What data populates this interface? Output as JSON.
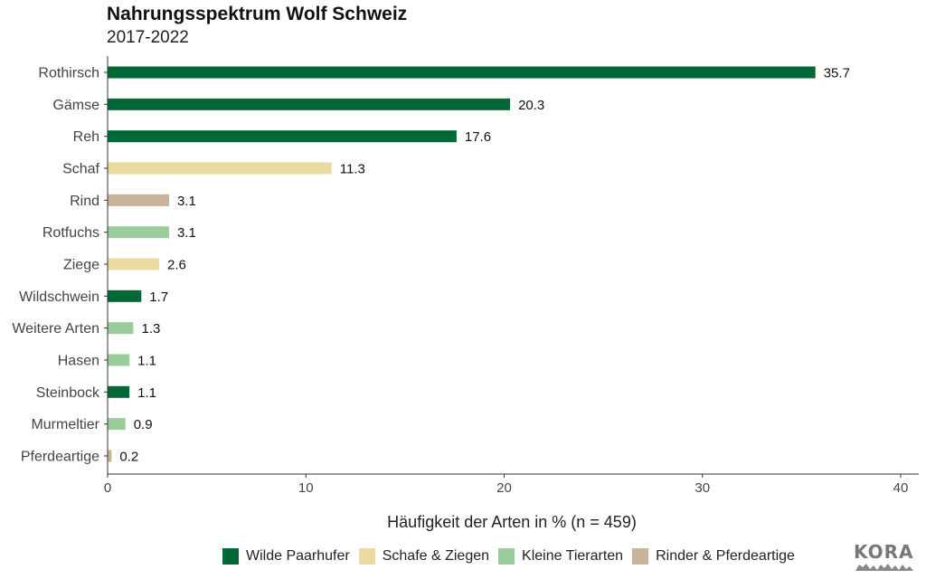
{
  "chart_data": {
    "type": "bar",
    "orientation": "horizontal",
    "title": "Nahrungsspektrum Wolf Schweiz",
    "subtitle": "2017-2022",
    "xlabel": "Häufigkeit der Arten in % (n = 459)",
    "ylabel": "",
    "xlim": [
      0,
      40
    ],
    "xticks": [
      0,
      10,
      20,
      30,
      40
    ],
    "grid": false,
    "legend_position": "bottom",
    "categories": [
      "Rothirsch",
      "Gämse",
      "Reh",
      "Schaf",
      "Rind",
      "Rotfuchs",
      "Ziege",
      "Wildschwein",
      "Weitere Arten",
      "Hasen",
      "Steinbock",
      "Murmeltier",
      "Pferdeartige"
    ],
    "values": [
      35.7,
      20.3,
      17.6,
      11.3,
      3.1,
      3.1,
      2.6,
      1.7,
      1.3,
      1.1,
      1.1,
      0.9,
      0.2
    ],
    "value_labels": [
      "35.7",
      "20.3",
      "17.6",
      "11.3",
      "3.1",
      "3.1",
      "2.6",
      "1.7",
      "1.3",
      "1.1",
      "1.1",
      "0.9",
      "0.2"
    ],
    "groups": [
      "Wilde Paarhufer",
      "Wilde Paarhufer",
      "Wilde Paarhufer",
      "Schafe & Ziegen",
      "Rinder & Pferdeartige",
      "Kleine Tierarten",
      "Schafe & Ziegen",
      "Wilde Paarhufer",
      "Kleine Tierarten",
      "Kleine Tierarten",
      "Wilde Paarhufer",
      "Kleine Tierarten",
      "Rinder & Pferdeartige"
    ],
    "legend": [
      {
        "name": "Wilde Paarhufer",
        "color": "#006837"
      },
      {
        "name": "Schafe & Ziegen",
        "color": "#ecdba0"
      },
      {
        "name": "Kleine Tierarten",
        "color": "#9bcc9b"
      },
      {
        "name": "Rinder & Pferdeartige",
        "color": "#c8b49b"
      }
    ]
  },
  "logo": {
    "text": "KORA"
  }
}
